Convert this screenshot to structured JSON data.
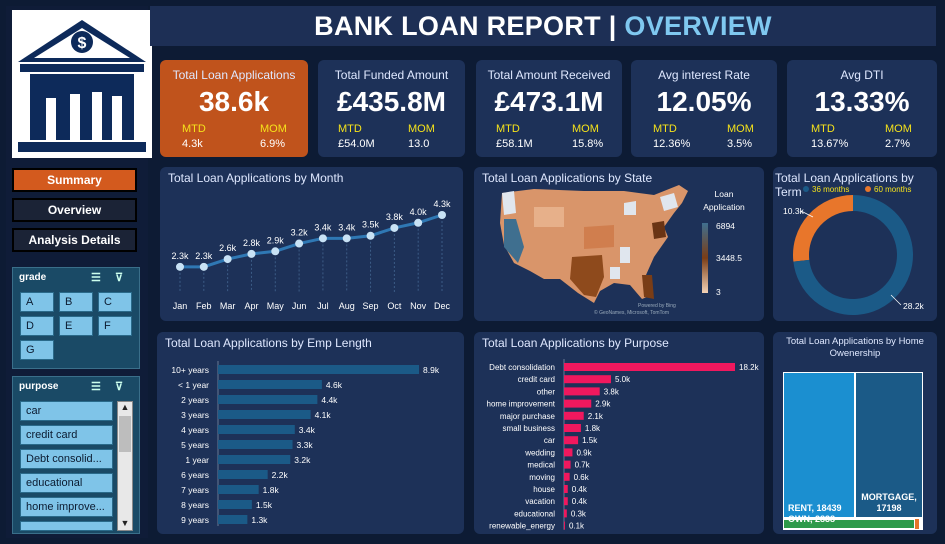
{
  "header": {
    "title_main": "BANK LOAN REPORT | ",
    "title_accent": "OVERVIEW",
    "accent_color": "#7fc8f0"
  },
  "nav": {
    "summary": "Summary",
    "overview": "Overview",
    "details": "Analysis Details"
  },
  "grade_slicer": {
    "title": "grade",
    "items": [
      "A",
      "B",
      "C",
      "D",
      "E",
      "F",
      "G"
    ]
  },
  "purpose_slicer": {
    "title": "purpose",
    "items": [
      "car",
      "credit card",
      "Debt consolid...",
      "educational",
      "home improve..."
    ]
  },
  "kpis": [
    {
      "title": "Total Loan Applications",
      "value": "38.6k",
      "mtd_label": "MTD",
      "mtd": "4.3k",
      "mom_label": "MOM",
      "mom": "6.9%"
    },
    {
      "title": "Total Funded Amount",
      "value": "£435.8M",
      "mtd_label": "MTD",
      "mtd": "£54.0M",
      "mom_label": "MOM",
      "mom": "13.0"
    },
    {
      "title": "Total Amount Received",
      "value": "£473.1M",
      "mtd_label": "MTD",
      "mtd": "£58.1M",
      "mom_label": "MOM",
      "mom": "15.8%"
    },
    {
      "title": "Avg interest Rate",
      "value": "12.05%",
      "mtd_label": "MTD",
      "mtd": "12.36%",
      "mom_label": "MOM",
      "mom": "3.5%"
    },
    {
      "title": "Avg DTI",
      "value": "13.33%",
      "mtd_label": "MTD",
      "mtd": "13.67%",
      "mom_label": "MOM",
      "mom": "2.7%"
    }
  ],
  "panels": {
    "month": "Total Loan Applications by Month",
    "state": "Total Loan Applications by State",
    "term": "Total Loan Applications by Term",
    "emp": "Total Loan Applications by Emp Length",
    "purpose": "Total Loan Applications by Purpose",
    "home": "Total Loan Applications by Home Owenership"
  },
  "state_legend": {
    "title": "Loan Application",
    "max": "6894",
    "mid": "3448.5",
    "min": "3",
    "credit_1": "Powered by Bing",
    "credit_2": "© GeoNames, Microsoft, TomTom"
  },
  "chart_data": [
    {
      "type": "line",
      "title": "Total Loan Applications by Month",
      "categories": [
        "Jan",
        "Feb",
        "Mar",
        "Apr",
        "May",
        "Jun",
        "Jul",
        "Aug",
        "Sep",
        "Oct",
        "Nov",
        "Dec"
      ],
      "values": [
        2.3,
        2.3,
        2.6,
        2.8,
        2.9,
        3.2,
        3.4,
        3.4,
        3.5,
        3.8,
        4.0,
        4.3
      ],
      "labels": [
        "2.3k",
        "2.3k",
        "2.6k",
        "2.8k",
        "2.9k",
        "3.2k",
        "3.4k",
        "3.4k",
        "3.5k",
        "3.8k",
        "4.0k",
        "4.3k"
      ]
    },
    {
      "type": "pie",
      "title": "Total Loan Applications by Term",
      "categories": [
        "36 months",
        "60 months"
      ],
      "values": [
        28.2,
        10.3
      ],
      "labels": [
        "28.2k",
        "10.3k"
      ],
      "colors": [
        "#1b5a87",
        "#e8762b"
      ]
    },
    {
      "type": "bar",
      "title": "Total Loan Applications by Emp Length",
      "categories": [
        "10+ years",
        "< 1 year",
        "2 years",
        "3 years",
        "4 years",
        "5 years",
        "1 year",
        "6 years",
        "7 years",
        "8 years",
        "9 years"
      ],
      "values": [
        8.9,
        4.6,
        4.4,
        4.1,
        3.4,
        3.3,
        3.2,
        2.2,
        1.8,
        1.5,
        1.3
      ],
      "labels": [
        "8.9k",
        "4.6k",
        "4.4k",
        "4.1k",
        "3.4k",
        "3.3k",
        "3.2k",
        "2.2k",
        "1.8k",
        "1.5k",
        "1.3k"
      ],
      "color": "#1b5a87"
    },
    {
      "type": "bar",
      "title": "Total Loan Applications by Purpose",
      "categories": [
        "Debt consolidation",
        "credit card",
        "other",
        "home improvement",
        "major purchase",
        "small business",
        "car",
        "wedding",
        "medical",
        "moving",
        "house",
        "vacation",
        "educational",
        "renewable_energy"
      ],
      "values": [
        18.2,
        5.0,
        3.8,
        2.9,
        2.1,
        1.8,
        1.5,
        0.9,
        0.7,
        0.6,
        0.4,
        0.4,
        0.3,
        0.1
      ],
      "labels": [
        "18.2k",
        "5.0k",
        "3.8k",
        "2.9k",
        "2.1k",
        "1.8k",
        "1.5k",
        "0.9k",
        "0.7k",
        "0.6k",
        "0.4k",
        "0.4k",
        "0.3k",
        "0.1k"
      ],
      "color": "#f0185e"
    },
    {
      "type": "table",
      "title": "Total Loan Applications by Home Owenership",
      "categories": [
        "RENT",
        "MORTGAGE",
        "OWN"
      ],
      "values": [
        18439,
        17198,
        2838
      ],
      "labels": [
        "RENT, 18439",
        "MORTGAGE, 17198",
        "OWN, 2838"
      ],
      "colors": [
        "#1b8fd0",
        "#1b5a87",
        "#2e9a4a"
      ]
    }
  ]
}
